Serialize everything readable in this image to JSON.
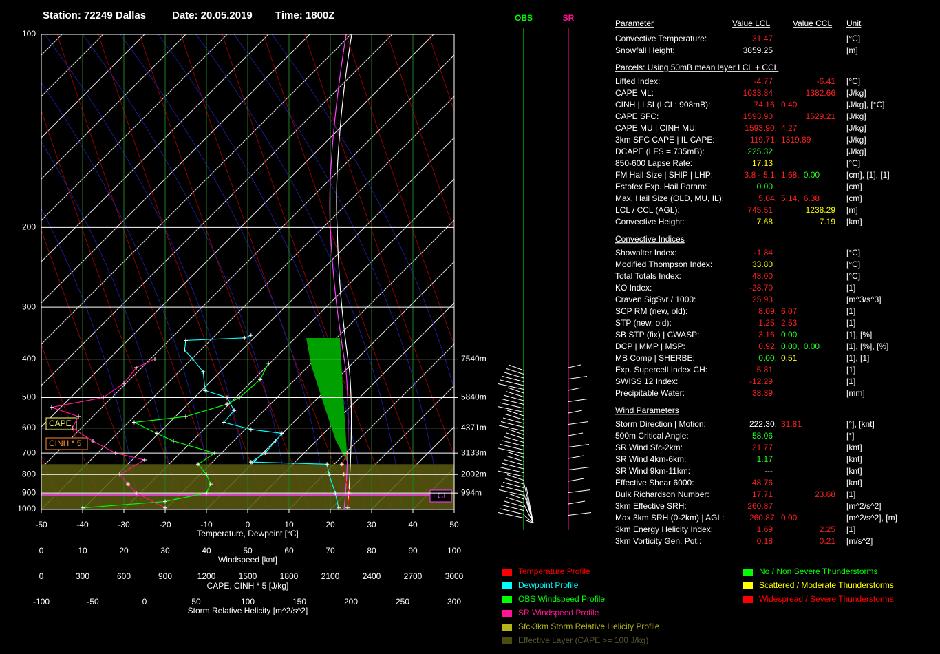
{
  "header": {
    "station": "Station: 72249 Dallas",
    "date": "Date: 20.05.2019",
    "time": "Time: 1800Z"
  },
  "chart_data": {
    "type": "skewt",
    "xlabel": "Temperature, Dewpoint  [°C]",
    "xlim": [
      -50,
      50
    ],
    "xticks": [
      -50,
      -40,
      -30,
      -20,
      -10,
      0,
      10,
      20,
      30,
      40,
      50
    ],
    "ylim": [
      100,
      1000
    ],
    "yticks": [
      100,
      200,
      300,
      400,
      500,
      600,
      700,
      800,
      900,
      1000
    ],
    "log_y": true,
    "height_ticks": [
      {
        "value": 400,
        "label": "7540m"
      },
      {
        "value": 500,
        "label": "5840m"
      },
      {
        "value": 600,
        "label": "4371m"
      },
      {
        "value": 700,
        "label": "3133m"
      },
      {
        "value": 800,
        "label": "2002m"
      },
      {
        "value": 900,
        "label": "994m"
      }
    ],
    "windspeed_axis": {
      "label": "Windspeed  [knt]",
      "xlim": [
        0,
        100
      ],
      "xticks": [
        0,
        10,
        20,
        30,
        40,
        50,
        60,
        70,
        80,
        90,
        100
      ]
    },
    "cape_axis": {
      "label": "CAPE, CINH * 5  [J/kg]",
      "xlim": [
        0,
        3000
      ],
      "xticks": [
        0,
        300,
        600,
        900,
        1200,
        1500,
        1800,
        2100,
        2400,
        2700,
        3000
      ]
    },
    "srh_axis": {
      "label": "Storm Relative Helicity  [m^2/s^2]",
      "xlim": [
        -100,
        300
      ],
      "xticks": [
        -100,
        -50,
        0,
        50,
        100,
        150,
        200,
        250,
        300
      ]
    },
    "series": [
      {
        "name": "Temperature Profile",
        "color": "#ff0000",
        "axis": "temperature",
        "pressure": [
          990,
          900,
          800,
          750,
          700
        ],
        "values": [
          24.2,
          24.7,
          23.3,
          22.8,
          24.2
        ]
      },
      {
        "name": "Dewpoint Profile",
        "color": "#00ffff",
        "axis": "temperature",
        "pressure": [
          990,
          900,
          800,
          750,
          740,
          700,
          650,
          620,
          605,
          580,
          540,
          500,
          480,
          430,
          400,
          380,
          360,
          355,
          350
        ],
        "values": [
          22,
          21.2,
          19.7,
          19.2,
          0.8,
          4.2,
          6.7,
          8.3,
          0.8,
          -5.8,
          -3.3,
          -5,
          -10.3,
          -10.8,
          -13.3,
          -15.3,
          -15,
          -0.8,
          0.8
        ]
      },
      {
        "name": "OBS Windspeed Profile",
        "color": "#00ff00",
        "axis": "windspeed",
        "pressure": [
          990,
          950,
          900,
          850,
          800,
          750,
          700,
          650,
          620,
          580,
          560,
          520,
          500,
          450,
          410
        ],
        "values": [
          10,
          30,
          40,
          41,
          40,
          38,
          42,
          32,
          28,
          22.5,
          35,
          45,
          48,
          53,
          55
        ]
      },
      {
        "name": "SR Windspeed Profile",
        "color": "#ff1493",
        "axis": "windspeed",
        "pressure": [
          990,
          900,
          850,
          800,
          730,
          700,
          650,
          600,
          560,
          530,
          500,
          460,
          420,
          400
        ],
        "values": [
          30,
          23,
          21,
          19,
          25,
          18,
          12.5,
          7.5,
          9,
          2.5,
          15,
          20,
          23,
          27.5
        ]
      }
    ],
    "srh_legend": {
      "name": "Sfc-3km Storm Relative Helicity Profile",
      "color": "#b5b51a"
    },
    "effective_layer": {
      "name": "Effective Layer (CAPE >= 100 J/kg)",
      "color": "#4b4b14",
      "pressure": [
        1000,
        750
      ]
    },
    "labels": {
      "cape": "CAPE",
      "cinh": "CINH * 5",
      "lcl": "LCL"
    },
    "wind_columns": [
      {
        "name": "OBS",
        "color": "#00ff00"
      },
      {
        "name": "SR",
        "color": "#ff1493"
      }
    ]
  },
  "threat_legend": [
    {
      "name": "No / Non Severe Thunderstorms",
      "color": "#00ff00"
    },
    {
      "name": "Scattered / Moderate Thunderstorms",
      "color": "#ffff00"
    },
    {
      "name": "Widespread / Severe Thunderstorms",
      "color": "#ff0000"
    }
  ],
  "table": {
    "header": [
      "Parameter",
      "Value LCL",
      "Value CCL",
      "Unit"
    ],
    "rows": [
      {
        "param": "Convective Temperature:",
        "lcl": [
          {
            "text": "31.47",
            "color": "#ff2020"
          }
        ],
        "unit": "[°C]"
      },
      {
        "param": "Snowfall Height:",
        "lcl": [
          {
            "text": "3859.25",
            "color": "#ffffff"
          }
        ],
        "unit": "[m]"
      },
      {
        "section": "Parcels: Using 50mB mean layer LCL + CCL"
      },
      {
        "param": "Lifted Index:",
        "lcl": [
          {
            "text": "-4.77",
            "color": "#ff2020"
          }
        ],
        "ccl": [
          {
            "text": "-6.41",
            "color": "#ff2020"
          }
        ],
        "unit": "[°C]"
      },
      {
        "param": "CAPE ML:",
        "lcl": [
          {
            "text": "1033.84",
            "color": "#ff2020"
          }
        ],
        "ccl": [
          {
            "text": "1382.66",
            "color": "#ff2020"
          }
        ],
        "unit": "[J/kg]"
      },
      {
        "param": "CINH | LSI (LCL: 908mB):",
        "lcl": [
          {
            "text": "74.16,",
            "color": "#ff2020"
          },
          {
            "text": "0.40",
            "color": "#ff2020"
          }
        ],
        "unit": "[J/kg], [°C]"
      },
      {
        "param": "CAPE SFC:",
        "lcl": [
          {
            "text": "1593.90",
            "color": "#ff2020"
          }
        ],
        "ccl": [
          {
            "text": "1529.21",
            "color": "#ff2020"
          }
        ],
        "unit": "[J/kg]"
      },
      {
        "param": "CAPE MU | CINH MU:",
        "lcl": [
          {
            "text": "1593.90,",
            "color": "#ff2020"
          },
          {
            "text": "4.27",
            "color": "#ff2020"
          }
        ],
        "unit": "[J/kg]"
      },
      {
        "param": "3km SFC CAPE | IL CAPE:",
        "lcl": [
          {
            "text": "119.71,",
            "color": "#ff2020"
          },
          {
            "text": "1319.89",
            "color": "#ff2020"
          }
        ],
        "unit": "[J/kg]"
      },
      {
        "param": "DCAPE (LFS = 735mB):",
        "lcl": [
          {
            "text": "225.32",
            "color": "#20ff20"
          }
        ],
        "unit": "[J/kg]"
      },
      {
        "param": "850-600 Lapse Rate:",
        "lcl": [
          {
            "text": "17.13",
            "color": "#ffff00"
          }
        ],
        "unit": "[°C]"
      },
      {
        "param": "FM Hail Size | SHIP | LHP:",
        "lcl": [
          {
            "text": "3.8 - 5.1,",
            "color": "#ff2020"
          },
          {
            "text": "1.68,",
            "color": "#ff2020"
          },
          {
            "text": "0.00",
            "color": "#20ff20"
          }
        ],
        "unit": "[cm], [1], [1]"
      },
      {
        "param": "Estofex Exp. Hail Param:",
        "lcl": [
          {
            "text": "0.00",
            "color": "#20ff20"
          }
        ],
        "unit": "[cm]"
      },
      {
        "param": "Max. Hail Size (OLD, MU, IL):",
        "lcl": [
          {
            "text": "5.04,",
            "color": "#ff2020"
          },
          {
            "text": "5.14,",
            "color": "#ff2020"
          },
          {
            "text": "6.38",
            "color": "#ff2020"
          }
        ],
        "unit": "[cm]"
      },
      {
        "param": "LCL / CCL (AGL):",
        "lcl": [
          {
            "text": "745.51",
            "color": "#ff2020"
          }
        ],
        "ccl": [
          {
            "text": "1238.29",
            "color": "#ffff00"
          }
        ],
        "unit": "[m]"
      },
      {
        "param": "Convective Height:",
        "lcl": [
          {
            "text": "7.68",
            "color": "#ffff00"
          }
        ],
        "ccl": [
          {
            "text": "7.19",
            "color": "#ffff00"
          }
        ],
        "unit": "[km]"
      },
      {
        "section": "Convective Indices"
      },
      {
        "param": "Showalter Index:",
        "lcl": [
          {
            "text": "-1.84",
            "color": "#ff2020"
          }
        ],
        "unit": "[°C]"
      },
      {
        "param": "Modified Thompson Index:",
        "lcl": [
          {
            "text": "33.80",
            "color": "#ffff00"
          }
        ],
        "unit": "[°C]"
      },
      {
        "param": "Total Totals Index:",
        "lcl": [
          {
            "text": "48.00",
            "color": "#ff2020"
          }
        ],
        "unit": "[°C]"
      },
      {
        "param": "KO Index:",
        "lcl": [
          {
            "text": "-28.70",
            "color": "#ff2020"
          }
        ],
        "unit": "[1]"
      },
      {
        "param": "Craven SigSvr / 1000:",
        "lcl": [
          {
            "text": "25.93",
            "color": "#ff2020"
          }
        ],
        "unit": "[m^3/s^3]"
      },
      {
        "param": "SCP RM (new, old):",
        "lcl": [
          {
            "text": "8.09,",
            "color": "#ff2020"
          },
          {
            "text": "6.07",
            "color": "#ff2020"
          }
        ],
        "unit": "[1]"
      },
      {
        "param": "STP (new, old):",
        "lcl": [
          {
            "text": "1.25,",
            "color": "#ff2020"
          },
          {
            "text": "2.53",
            "color": "#ff2020"
          }
        ],
        "unit": "[1]"
      },
      {
        "param": "SB STP (fix) | CWASP:",
        "lcl": [
          {
            "text": "3.16,",
            "color": "#ff2020"
          },
          {
            "text": "0.00",
            "color": "#20ff20"
          }
        ],
        "unit": "[1], [%]"
      },
      {
        "param": "DCP | MMP | MSP:",
        "lcl": [
          {
            "text": "0.92,",
            "color": "#ff2020"
          },
          {
            "text": "0.00,",
            "color": "#20ff20"
          },
          {
            "text": "0.00",
            "color": "#20ff20"
          }
        ],
        "unit": "[1], [%], [%]"
      },
      {
        "param": "MB Comp | SHERBE:",
        "lcl": [
          {
            "text": "0.00,",
            "color": "#20ff20"
          },
          {
            "text": "0.51",
            "color": "#ffff00"
          }
        ],
        "unit": "[1], [1]"
      },
      {
        "param": "Exp. Supercell Index CH:",
        "lcl": [
          {
            "text": "5.81",
            "color": "#ff2020"
          }
        ],
        "unit": "[1]"
      },
      {
        "param": "SWISS 12 Index:",
        "lcl": [
          {
            "text": "-12.29",
            "color": "#ff2020"
          }
        ],
        "unit": "[1]"
      },
      {
        "param": "Precipitable Water:",
        "lcl": [
          {
            "text": "38.39",
            "color": "#ff2020"
          }
        ],
        "unit": "[mm]"
      },
      {
        "section": "Wind Parameters"
      },
      {
        "param": "Storm Direction | Motion:",
        "lcl": [
          {
            "text": "222.30,",
            "color": "#ffffff"
          },
          {
            "text": "31.81",
            "color": "#ff2020"
          }
        ],
        "unit": "[°], [knt]"
      },
      {
        "param": "500m Critical Angle:",
        "lcl": [
          {
            "text": "58.06",
            "color": "#20ff20"
          }
        ],
        "unit": "[°]"
      },
      {
        "param": "SR Wind Sfc-2km:",
        "lcl": [
          {
            "text": "21.77",
            "color": "#ff2020"
          }
        ],
        "unit": "[knt]"
      },
      {
        "param": "SR Wind 4km-6km:",
        "lcl": [
          {
            "text": "1.17",
            "color": "#20ff20"
          }
        ],
        "unit": "[knt]"
      },
      {
        "param": "SR Wind 9km-11km:",
        "lcl": [
          {
            "text": "---",
            "color": "#ffffff"
          }
        ],
        "unit": "[knt]"
      },
      {
        "param": "Effective Shear 6000:",
        "lcl": [
          {
            "text": "48.76",
            "color": "#ff2020"
          }
        ],
        "unit": "[knt]"
      },
      {
        "param": "Bulk Richardson Number:",
        "lcl": [
          {
            "text": "17.71",
            "color": "#ff2020"
          }
        ],
        "ccl": [
          {
            "text": "23.68",
            "color": "#ff2020"
          }
        ],
        "unit": "[1]"
      },
      {
        "param": "3km Effective SRH:",
        "lcl": [
          {
            "text": "260.87",
            "color": "#ff2020"
          }
        ],
        "unit": "[m^2/s^2]"
      },
      {
        "param": "Max 3km SRH (0-2km) | AGL:",
        "lcl": [
          {
            "text": "260.87,",
            "color": "#ff2020"
          },
          {
            "text": "0.00",
            "color": "#ff2020"
          }
        ],
        "unit": "[m^2/s^2], [m]"
      },
      {
        "param": "3km Energy Helicity Index:",
        "lcl": [
          {
            "text": "1.69",
            "color": "#ff2020"
          }
        ],
        "ccl": [
          {
            "text": "2.25",
            "color": "#ff2020"
          }
        ],
        "unit": "[1]"
      },
      {
        "param": "3km Vorticity Gen. Pot.:",
        "lcl": [
          {
            "text": "0.18",
            "color": "#ff2020"
          }
        ],
        "ccl": [
          {
            "text": "0.21",
            "color": "#ff2020"
          }
        ],
        "unit": "[m/s^2]"
      }
    ]
  }
}
